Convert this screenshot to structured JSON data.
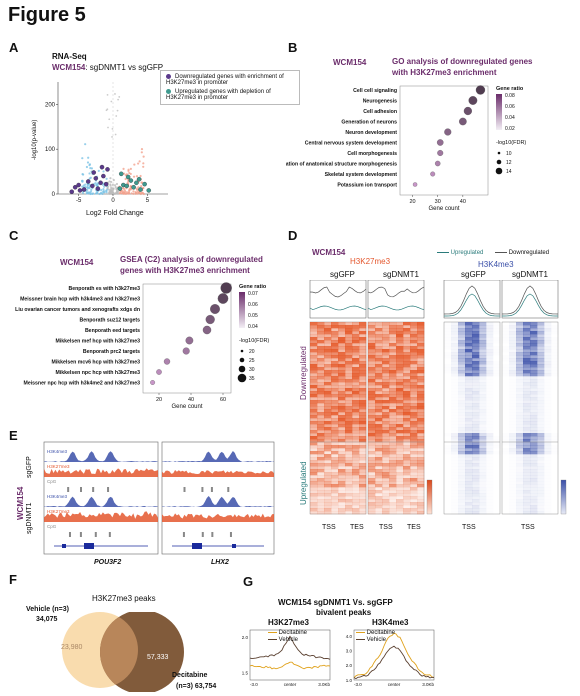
{
  "figure_title": "Figure 5",
  "panels": {
    "A": {
      "label": "A",
      "subtitle_line1": "RNA-Seq",
      "subtitle_prefix": "WCM154",
      "subtitle_rest": ": sgDNMT1 vs sgGFP",
      "ylabel": "-log10(p-value)",
      "xlabel": "Log2 Fold Change",
      "yticks": [
        "0",
        "100",
        "200"
      ],
      "xticks": [
        "-5",
        "0",
        "5"
      ],
      "legend": [
        {
          "text": "Downregulated genes with enrichment of H3K27me3 in promoter",
          "color": "#5b3a8c"
        },
        {
          "text": "Upregulated genes with depletion of H3K27me3 in promoter",
          "color": "#3f9a8f"
        }
      ]
    },
    "B": {
      "label": "B",
      "cell_line": "WCM154",
      "title": "GO analysis of downregulated genes with H3K27me3 enrichment",
      "xlabel": "Gene count",
      "xticks": [
        "20",
        "30",
        "40"
      ],
      "legend_title1": "Gene ratio",
      "legend_ticks1": [
        "0.08",
        "0.06",
        "0.04",
        "0.02"
      ],
      "legend_title2": "-log10(FDR)",
      "legend_sizes": [
        "10",
        "12",
        "14"
      ]
    },
    "C": {
      "label": "C",
      "cell_line": "WCM154",
      "title": "GSEA (C2) analysis of downregulated genes with H3K27me3 enrichment",
      "xlabel": "Gene count",
      "xticks": [
        "20",
        "40",
        "60"
      ],
      "legend_title1": "Gene ratio",
      "legend_ticks1": [
        "0.07",
        "0.06",
        "0.05",
        "0.04"
      ],
      "legend_title2": "-log10(FDR)",
      "legend_sizes": [
        "20",
        "25",
        "30",
        "35"
      ]
    },
    "D": {
      "label": "D",
      "cell_line": "WCM154",
      "mark1": "H3K27me3",
      "mark2": "H3K4me3",
      "col1": "sgGFP",
      "col2": "sgDNMT1",
      "col3": "sgGFP",
      "col4": "sgDNMT1",
      "legend_up": "Upregulated",
      "legend_down": "Downregulated",
      "row_down": "Downregulated",
      "row_up": "Upregulated",
      "tss": "TSS",
      "tes": "TES"
    },
    "E": {
      "label": "E",
      "cell_line": "WCM154",
      "group1": "sgGFP",
      "group2": "sgDNMT1",
      "gene1": "POU3F2",
      "gene2": "LHX2",
      "tracks": [
        "H3K4me3",
        "H3K27me3",
        "CpG",
        "H3K4me3",
        "H3K27me3",
        "CpG"
      ]
    },
    "F": {
      "label": "F",
      "title": "H3K27me3 peaks",
      "set1_name": "Vehicle (n=3)",
      "set1_total": "34,075",
      "set1_only": "23,980",
      "set2_name": "Decitabine",
      "set2_n": "(n=3) 63,754",
      "set2_only": "57,333"
    },
    "G": {
      "label": "G",
      "title_line1": "WCM154 sgDNMT1 Vs. sgGFP",
      "title_line2": "bivalent peaks",
      "plot1_title": "H3K27me3",
      "plot2_title": "H3K4me3",
      "legend1": "Decitabine",
      "legend2": "Vehicle",
      "center_label": "center",
      "left_tick": "-3.0",
      "right_tick": "3.0Kb"
    }
  },
  "chart_data": [
    {
      "type": "scatter",
      "title": "",
      "xlabel": "Log2 Fold Change",
      "ylabel": "-log10(p-value)",
      "xlim": [
        -8,
        8
      ],
      "ylim": [
        0,
        250
      ],
      "series": [
        {
          "name": "Downregulated genes with enrichment of H3K27me3 in promoter",
          "color": "#5b3a8c",
          "points": [
            [
              -5.5,
              15
            ],
            [
              -5,
              20
            ],
            [
              -4.2,
              10
            ],
            [
              -3.6,
              28
            ],
            [
              -3,
              18
            ],
            [
              -2.5,
              35
            ],
            [
              -2.2,
              12
            ],
            [
              -1.8,
              25
            ],
            [
              -1.4,
              40
            ],
            [
              -1,
              22
            ],
            [
              -0.8,
              55
            ],
            [
              -4.8,
              8
            ],
            [
              -6,
              5
            ],
            [
              -2.8,
              48
            ],
            [
              -1.6,
              60
            ]
          ]
        },
        {
          "name": "Upregulated genes with depletion of H3K27me3 in promoter",
          "color": "#3f9a8f",
          "points": [
            [
              1,
              12
            ],
            [
              1.5,
              20
            ],
            [
              2,
              18
            ],
            [
              2.6,
              30
            ],
            [
              3,
              15
            ],
            [
              3.4,
              25
            ],
            [
              4,
              10
            ],
            [
              4.6,
              22
            ],
            [
              5.2,
              8
            ],
            [
              2.2,
              38
            ],
            [
              1.2,
              45
            ],
            [
              3.8,
              33
            ]
          ]
        }
      ]
    },
    {
      "type": "scatter",
      "title": "GO analysis of downregulated genes with H3K27me3 enrichment",
      "xlabel": "Gene count",
      "categories": [
        "Cell cell signaling",
        "Neurogenesis",
        "Cell adhesion",
        "Generation of neurons",
        "Neuron development",
        "Central nervous system development",
        "Cell morphogenesis",
        "Regulation of anatomical structure morphogenesis",
        "Skeletal system development",
        "Potassium ion transport"
      ],
      "values": [
        47,
        44,
        42,
        40,
        34,
        31,
        31,
        30,
        28,
        21
      ],
      "xlim": [
        15,
        50
      ]
    },
    {
      "type": "scatter",
      "title": "GSEA (C2) analysis of downregulated genes with H3K27me3 enrichment",
      "xlabel": "Gene count",
      "categories": [
        "Benporath es with h3k27me3",
        "Meissner brain hcp with h3k4me3 and h3k27me3",
        "Liu ovarian cancer tumors and xenografts xdgs dn",
        "Benporath suz12 targets",
        "Benporath eed targets",
        "Mikkelsen mef hcp with h3k27me3",
        "Benporath prc2 targets",
        "Mikkelsen mcv6 hcp with h3k27me3",
        "Mikkelsen npc hcp with h3k27me3",
        "Meissner npc hcp with h3k4me2 and h3k27me3"
      ],
      "values": [
        62,
        60,
        55,
        52,
        50,
        39,
        37,
        25,
        20,
        16
      ],
      "xlim": [
        10,
        65
      ]
    },
    {
      "type": "line",
      "title": "H3K27me3",
      "x": [
        -3,
        -2,
        -1,
        -0.5,
        0,
        0.5,
        1,
        2,
        3
      ],
      "series": [
        {
          "name": "Decitabine",
          "values": [
            1.6,
            1.58,
            1.55,
            1.6,
            1.65,
            1.6,
            1.55,
            1.58,
            1.6
          ]
        },
        {
          "name": "Vehicle",
          "values": [
            1.7,
            1.72,
            1.75,
            1.85,
            2.0,
            1.85,
            1.75,
            1.72,
            1.7
          ]
        }
      ],
      "yticks": [
        "1.5",
        "2.0",
        "2.5"
      ]
    },
    {
      "type": "line",
      "title": "H3K4me3",
      "x": [
        -3,
        -2,
        -1,
        -0.5,
        0,
        0.5,
        1,
        2,
        3
      ],
      "series": [
        {
          "name": "Decitabine",
          "values": [
            1.2,
            1.5,
            2.8,
            3.8,
            4.2,
            3.8,
            2.8,
            1.5,
            1.2
          ]
        },
        {
          "name": "Vehicle",
          "values": [
            1.1,
            1.3,
            2.2,
            3.0,
            3.3,
            3.0,
            2.2,
            1.3,
            1.1
          ]
        }
      ],
      "yticks": [
        "1.0",
        "2.0",
        "3.0",
        "4.0",
        "5.0"
      ]
    }
  ]
}
